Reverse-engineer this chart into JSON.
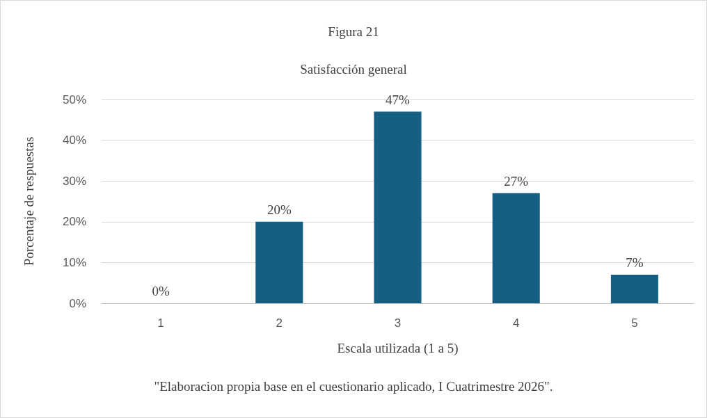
{
  "chart_data": {
    "type": "bar",
    "title": "Figura 21",
    "subtitle": "Satisfacción general",
    "xlabel": "Escala utilizada (1 a 5)",
    "ylabel": "Porcentaje de respuestas",
    "categories": [
      "1",
      "2",
      "3",
      "4",
      "5"
    ],
    "values": [
      0,
      20,
      47,
      27,
      7
    ],
    "value_labels": [
      "0%",
      "20%",
      "47%",
      "27%",
      "7%"
    ],
    "color": "#155f82",
    "ylim": [
      0,
      50
    ],
    "yticks": [
      {
        "value": 0,
        "label": "0%"
      },
      {
        "value": 10,
        "label": "10%"
      },
      {
        "value": 20,
        "label": "20%"
      },
      {
        "value": 30,
        "label": "30%"
      },
      {
        "value": 40,
        "label": "40%"
      },
      {
        "value": 50,
        "label": "50%"
      }
    ],
    "grid": "y",
    "annotations": [
      "\"Elaboracion propia base en el cuestionario aplicado, I Cuatrimestre 2026\"."
    ]
  }
}
